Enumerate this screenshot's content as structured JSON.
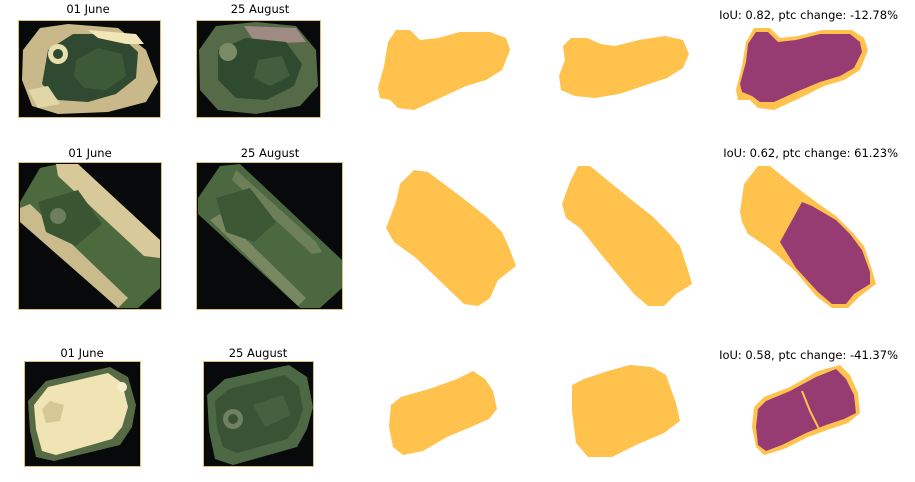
{
  "colors": {
    "mask_fill": "#ffc24d",
    "overlap_fill": "#973c72",
    "image_background": "#07090a",
    "outline": "#ffc24d"
  },
  "rows": [
    {
      "date_1": "01 June",
      "date_2": "25 August",
      "metric_text": "IoU: 0.82, ptc change: -12.78%",
      "iou": 0.82,
      "pct_change": -12.78
    },
    {
      "date_1": "01 June",
      "date_2": "25 August",
      "metric_text": "IoU: 0.62, ptc change: 61.23%",
      "iou": 0.62,
      "pct_change": 61.23
    },
    {
      "date_1": "01 June",
      "date_2": "25 August",
      "metric_text": "IoU: 0.58, ptc change: -41.37%",
      "iou": 0.58,
      "pct_change": -41.37
    }
  ]
}
